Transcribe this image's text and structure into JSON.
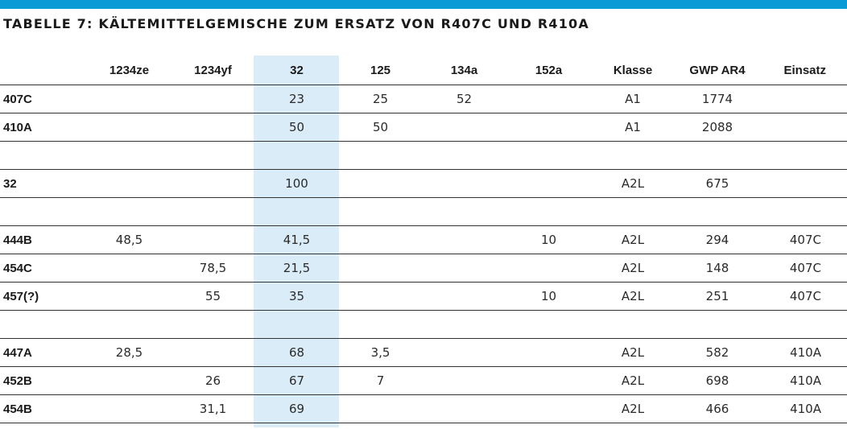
{
  "title": "TABELLE 7: KÄLTEMITTELGEMISCHE ZUM ERSATZ VON R407C UND R410A",
  "columns": [
    "",
    "1234ze",
    "1234yf",
    "32",
    "125",
    "134a",
    "152a",
    "Klasse",
    "GWP AR4",
    "Einsatz"
  ],
  "rows": [
    [
      "407C",
      "",
      "",
      "23",
      "25",
      "52",
      "",
      "A1",
      "1774",
      ""
    ],
    [
      "410A",
      "",
      "",
      "50",
      "50",
      "",
      "",
      "A1",
      "2088",
      ""
    ],
    [
      "",
      "",
      "",
      "",
      "",
      "",
      "",
      "",
      "",
      ""
    ],
    [
      "32",
      "",
      "",
      "100",
      "",
      "",
      "",
      "A2L",
      "675",
      ""
    ],
    [
      "",
      "",
      "",
      "",
      "",
      "",
      "",
      "",
      "",
      ""
    ],
    [
      "444B",
      "48,5",
      "",
      "41,5",
      "",
      "",
      "10",
      "A2L",
      "294",
      "407C"
    ],
    [
      "454C",
      "",
      "78,5",
      "21,5",
      "",
      "",
      "",
      "A2L",
      "148",
      "407C"
    ],
    [
      "457(?)",
      "",
      "55",
      "35",
      "",
      "",
      "10",
      "A2L",
      "251",
      "407C"
    ],
    [
      "",
      "",
      "",
      "",
      "",
      "",
      "",
      "",
      "",
      ""
    ],
    [
      "447A",
      "28,5",
      "",
      "68",
      "3,5",
      "",
      "",
      "A2L",
      "582",
      "410A"
    ],
    [
      "452B",
      "",
      "26",
      "67",
      "7",
      "",
      "",
      "A2L",
      "698",
      "410A"
    ],
    [
      "454B",
      "",
      "31,1",
      "69",
      "",
      "",
      "",
      "A2L",
      "466",
      "410A"
    ]
  ],
  "colors": {
    "accent_bar": "#0a9bd6",
    "highlight_column": "#d9ecf8"
  }
}
